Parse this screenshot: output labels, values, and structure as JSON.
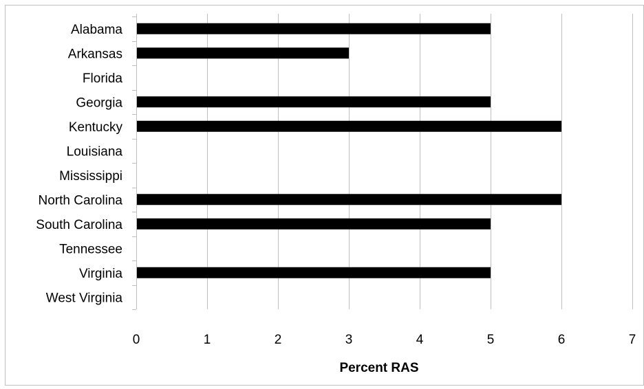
{
  "chart_data": {
    "type": "bar",
    "orientation": "horizontal",
    "title": "",
    "xlabel": "Percent RAS",
    "ylabel": "",
    "categories": [
      "Alabama",
      "Arkansas",
      "Florida",
      "Georgia",
      "Kentucky",
      "Louisiana",
      "Mississippi",
      "North Carolina",
      "South Carolina",
      "Tennessee",
      "Virginia",
      "West Virginia"
    ],
    "values": [
      5,
      3,
      0,
      5,
      6,
      0,
      0,
      6,
      5,
      0,
      5,
      0
    ],
    "xlim": [
      0,
      7
    ],
    "xticks": [
      "0",
      "1",
      "2",
      "3",
      "4",
      "5",
      "6",
      "7"
    ],
    "grid": "vertical",
    "legend": "none",
    "bar_color": "#000000",
    "grid_color": "#bfbfbf"
  }
}
